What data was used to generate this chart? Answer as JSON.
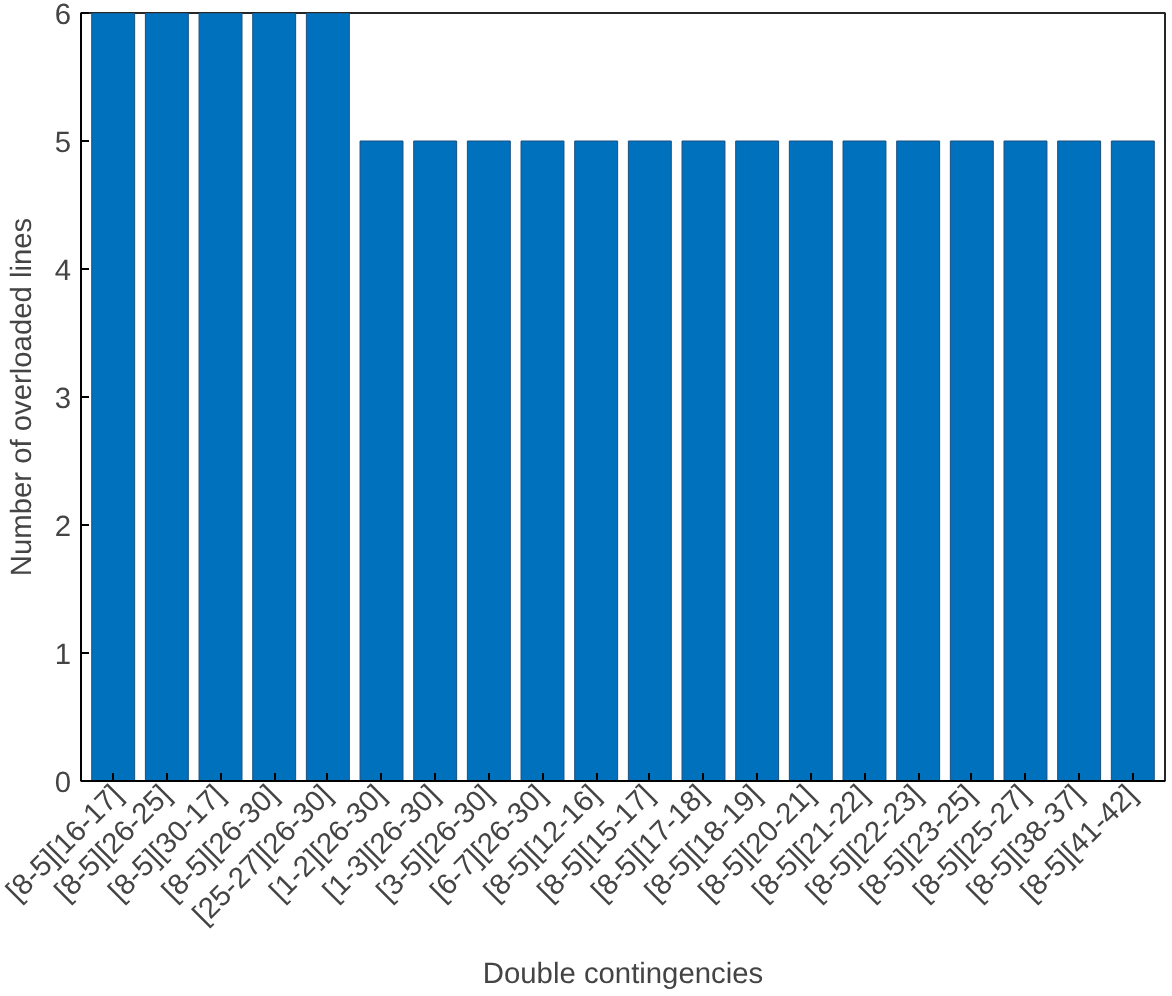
{
  "chart_data": {
    "type": "bar",
    "xlabel": "Double contingencies",
    "ylabel": "Number of overloaded lines",
    "categories": [
      "[8-5][16-17]",
      "[8-5][26-25]",
      "[8-5][30-17]",
      "[8-5][26-30]",
      "[25-27][26-30]",
      "[1-2][26-30]",
      "[1-3][26-30]",
      "[3-5][26-30]",
      "[6-7][26-30]",
      "[8-5][12-16]",
      "[8-5][15-17]",
      "[8-5][17-18]",
      "[8-5][18-19]",
      "[8-5][20-21]",
      "[8-5][21-22]",
      "[8-5][22-23]",
      "[8-5][23-25]",
      "[8-5][25-27]",
      "[8-5][38-37]",
      "[8-5][41-42]"
    ],
    "values": [
      6,
      6,
      6,
      6,
      6,
      5,
      5,
      5,
      5,
      5,
      5,
      5,
      5,
      5,
      5,
      5,
      5,
      5,
      5,
      5
    ],
    "color": "#0072bd",
    "ylim": [
      0,
      6
    ],
    "yticks": [
      0,
      1,
      2,
      3,
      4,
      5,
      6
    ],
    "grid": false
  }
}
